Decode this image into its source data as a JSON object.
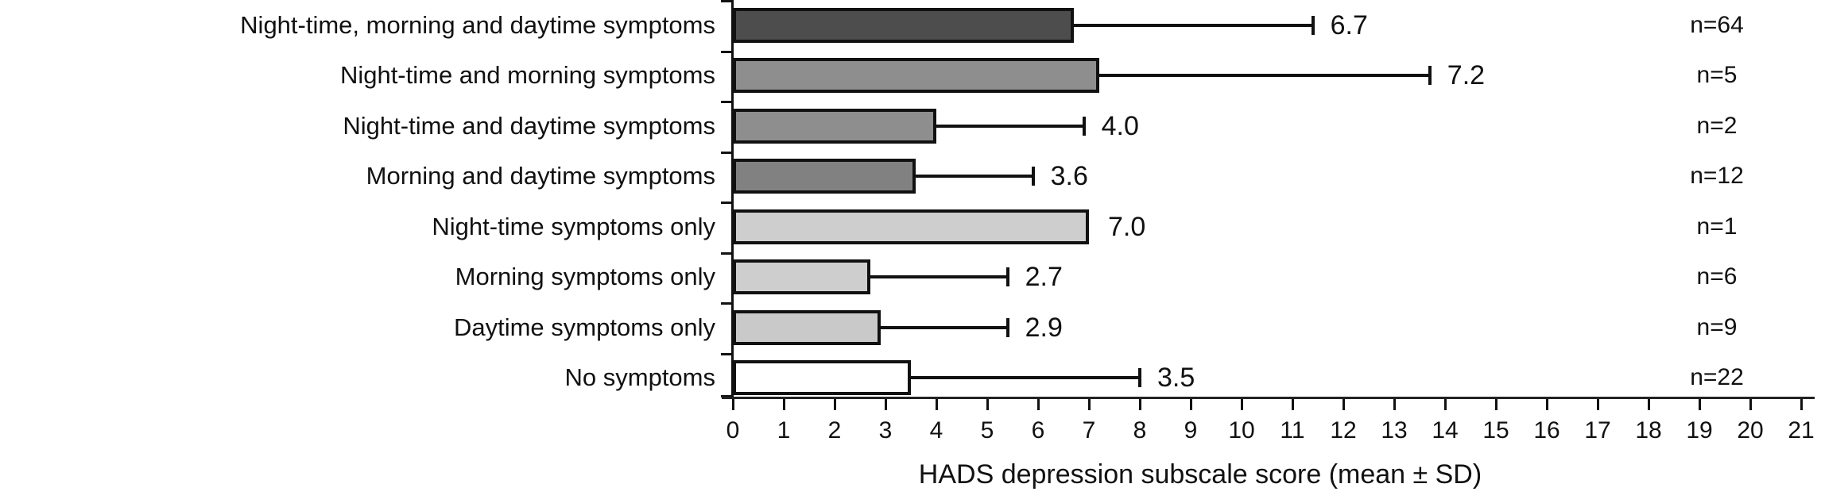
{
  "chart_data": {
    "type": "bar",
    "orientation": "horizontal",
    "title": "",
    "xlabel": "HADS depression subscale score (mean ± SD)",
    "ylabel": "",
    "xlim": [
      0,
      21
    ],
    "xticks": [
      0,
      1,
      2,
      3,
      4,
      5,
      6,
      7,
      8,
      9,
      10,
      11,
      12,
      13,
      14,
      15,
      16,
      17,
      18,
      19,
      20,
      21
    ],
    "grid": false,
    "legend": "none",
    "error_bars": "upper SD whisker only, black caps",
    "categories": [
      "Night-time, morning and daytime symptoms",
      "Night-time and morning symptoms",
      "Night-time and daytime symptoms",
      "Morning and daytime symptoms",
      "Night-time symptoms only",
      "Morning symptoms only",
      "Daytime symptoms only",
      "No symptoms"
    ],
    "rows": [
      {
        "label": "Night-time, morning and daytime symptoms",
        "mean": 6.7,
        "value_label": "6.7",
        "whisker_end": 11.4,
        "n_label": "n=64",
        "color": "#4d4d4d"
      },
      {
        "label": "Night-time and morning symptoms",
        "mean": 7.2,
        "value_label": "7.2",
        "whisker_end": 13.7,
        "n_label": "n=5",
        "color": "#8e8e8e"
      },
      {
        "label": "Night-time and daytime symptoms",
        "mean": 4.0,
        "value_label": "4.0",
        "whisker_end": 6.9,
        "n_label": "n=2",
        "color": "#8e8e8e"
      },
      {
        "label": "Morning and daytime symptoms",
        "mean": 3.6,
        "value_label": "3.6",
        "whisker_end": 5.9,
        "n_label": "n=12",
        "color": "#818181"
      },
      {
        "label": "Night-time symptoms only",
        "mean": 7.0,
        "value_label": "7.0",
        "whisker_end": null,
        "n_label": "n=1",
        "color": "#cecece"
      },
      {
        "label": "Morning symptoms only",
        "mean": 2.7,
        "value_label": "2.7",
        "whisker_end": 5.4,
        "n_label": "n=6",
        "color": "#cecece"
      },
      {
        "label": "Daytime symptoms only",
        "mean": 2.9,
        "value_label": "2.9",
        "whisker_end": 5.4,
        "n_label": "n=9",
        "color": "#c9c9c9"
      },
      {
        "label": "No symptoms",
        "mean": 3.5,
        "value_label": "3.5",
        "whisker_end": 8.0,
        "n_label": "n=22",
        "color": "#ffffff"
      }
    ]
  }
}
